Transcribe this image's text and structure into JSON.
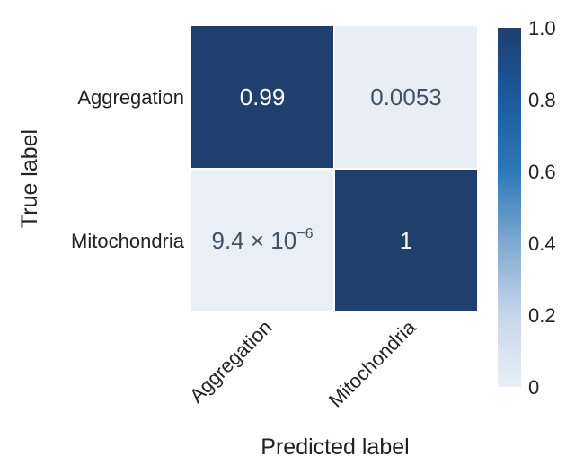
{
  "chart_data": {
    "type": "heatmap",
    "title": "",
    "xlabel": "Predicted label",
    "ylabel": "True label",
    "x_categories": [
      "Aggregation",
      "Mitochondria"
    ],
    "y_categories": [
      "Aggregation",
      "Mitochondria"
    ],
    "values": [
      [
        0.99,
        0.0053
      ],
      [
        9.4e-06,
        1.0
      ]
    ],
    "cell_labels": [
      [
        {
          "text": "0.99"
        },
        {
          "text": "0.0053"
        }
      ],
      [
        {
          "base": "9.4 × 10",
          "exponent": "−6"
        },
        {
          "text": "1"
        }
      ]
    ],
    "colorbar": {
      "range": [
        0,
        1
      ],
      "ticks": [
        0,
        0.2,
        0.4,
        0.6,
        0.8,
        1.0
      ],
      "tick_labels": [
        "0",
        "0.2",
        "0.4",
        "0.6",
        "0.8",
        "1.0"
      ],
      "colors": [
        "#e9eff6",
        "#c6d6ea",
        "#7fa9d1",
        "#2e78b8",
        "#1a5b9e",
        "#1f3f6d"
      ]
    },
    "dark_text_color": "#3f5266",
    "light_text_color": "#ffffff",
    "gridline_color": "#ffffff"
  }
}
